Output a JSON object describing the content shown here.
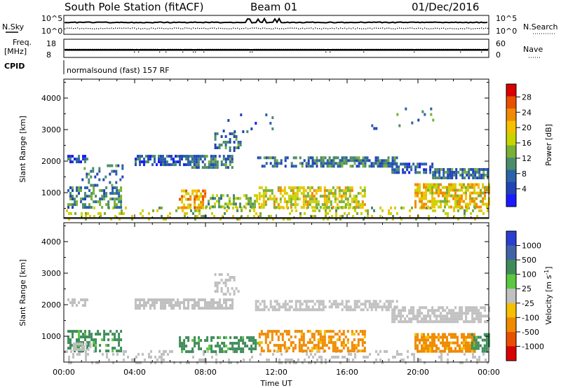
{
  "header": {
    "station": "South Pole Station (fitACF)",
    "beam": "Beam 01",
    "date": "01/Dec/2016"
  },
  "nsky_panel": {
    "left_label": "N.Sky",
    "right_label": "N.Search",
    "left_ticks": [
      "10^5",
      "10^0"
    ],
    "right_ticks": [
      "10^5",
      "10^0"
    ]
  },
  "freq_panel": {
    "left_label_line1": "Freq.",
    "left_label_line2": "[MHz]",
    "right_label": "Nave",
    "left_ticks": [
      "18",
      "8"
    ],
    "right_ticks": [
      "60",
      "0"
    ],
    "freq_value": 12,
    "nave_value": 28
  },
  "cpid": {
    "label": "CPID",
    "text": "normalsound (fast) 157 RF"
  },
  "chart_data": [
    {
      "type": "heatmap",
      "name": "power",
      "ylabel": "Slant Range [km]",
      "xlabel": "",
      "ylim": [
        180,
        4600
      ],
      "yticks": [
        1000,
        2000,
        3000,
        4000
      ],
      "xlim": [
        0,
        24
      ],
      "colorbar": {
        "label": "Power [dB]",
        "ticks": [
          "4",
          "8",
          "12",
          "16",
          "20",
          "24",
          "28"
        ],
        "colors": [
          "#1a1aff",
          "#2243b8",
          "#2a63a8",
          "#4d8c6a",
          "#79b038",
          "#c8d400",
          "#f5c000",
          "#f08a00",
          "#e85000",
          "#d80000"
        ]
      },
      "echo_regions": [
        {
          "t_start": 0.0,
          "t_end": 24.0,
          "range_low": 200,
          "range_high": 560,
          "value": 16,
          "density": 0.22
        },
        {
          "t_start": 0.2,
          "t_end": 3.2,
          "range_low": 560,
          "range_high": 1200,
          "value": 10,
          "density": 0.45
        },
        {
          "t_start": 0.2,
          "t_end": 1.3,
          "range_low": 1950,
          "range_high": 2200,
          "value": 6,
          "density": 0.7
        },
        {
          "t_start": 1.0,
          "t_end": 3.5,
          "range_low": 1200,
          "range_high": 1900,
          "value": 8,
          "density": 0.18
        },
        {
          "t_start": 4.0,
          "t_end": 7.2,
          "range_low": 1850,
          "range_high": 2200,
          "value": 6,
          "density": 0.7
        },
        {
          "t_start": 7.2,
          "t_end": 9.5,
          "range_low": 1800,
          "range_high": 2200,
          "value": 8,
          "density": 0.7
        },
        {
          "t_start": 8.5,
          "t_end": 10.0,
          "range_low": 2300,
          "range_high": 3000,
          "value": 8,
          "density": 0.35
        },
        {
          "t_start": 6.5,
          "t_end": 8.0,
          "range_low": 520,
          "range_high": 1100,
          "value": 20,
          "density": 0.6
        },
        {
          "t_start": 8.0,
          "t_end": 11.0,
          "range_low": 560,
          "range_high": 950,
          "value": 13,
          "density": 0.5
        },
        {
          "t_start": 11.0,
          "t_end": 17.0,
          "range_low": 560,
          "range_high": 1200,
          "value": 17,
          "density": 0.6
        },
        {
          "t_start": 10.8,
          "t_end": 16.0,
          "range_low": 1850,
          "range_high": 2150,
          "value": 8,
          "density": 0.45
        },
        {
          "t_start": 14.0,
          "t_end": 18.8,
          "range_low": 1850,
          "range_high": 2150,
          "value": 9,
          "density": 0.7
        },
        {
          "t_start": 18.5,
          "t_end": 20.8,
          "range_low": 1600,
          "range_high": 1950,
          "value": 7,
          "density": 0.6
        },
        {
          "t_start": 20.8,
          "t_end": 24.0,
          "range_low": 1500,
          "range_high": 1780,
          "value": 8,
          "density": 0.75
        },
        {
          "t_start": 19.8,
          "t_end": 24.0,
          "range_low": 560,
          "range_high": 1300,
          "value": 19,
          "density": 0.65
        },
        {
          "t_start": 9.0,
          "t_end": 12.0,
          "range_low": 2900,
          "range_high": 3600,
          "value": 6,
          "density": 0.05
        },
        {
          "t_start": 17.0,
          "t_end": 22.0,
          "range_low": 3000,
          "range_high": 3700,
          "value": 8,
          "density": 0.03
        }
      ]
    },
    {
      "type": "heatmap",
      "name": "velocity",
      "ylabel": "Slant Range [km]",
      "xlabel": "Time UT",
      "ylim": [
        180,
        4600
      ],
      "yticks": [
        1000,
        2000,
        3000,
        4000
      ],
      "xlim": [
        0,
        24
      ],
      "xtick_labels": [
        "00:00",
        "04:00",
        "08:00",
        "12:00",
        "16:00",
        "20:00",
        "00:00"
      ],
      "colorbar": {
        "label": "Velocity [m s^-1]",
        "ticks": [
          "1000",
          "500",
          "100",
          "25",
          "-25",
          "-100",
          "-500",
          "-1000"
        ],
        "colors": [
          "#2a3fcf",
          "#3f64a6",
          "#3f8c5a",
          "#5ac840",
          "#c0c0c0",
          "#f5c000",
          "#f08a00",
          "#e85000",
          "#d80000"
        ]
      },
      "echo_regions": [
        {
          "t_start": 0.0,
          "t_end": 24.0,
          "range_low": 200,
          "range_high": 560,
          "value": 0,
          "density": 0.2
        },
        {
          "t_start": 0.2,
          "t_end": 3.2,
          "range_low": 560,
          "range_high": 1200,
          "value": 200,
          "density": 0.45
        },
        {
          "t_start": 0.5,
          "t_end": 1.5,
          "range_low": 620,
          "range_high": 800,
          "value": 0,
          "density": 0.6
        },
        {
          "t_start": 0.2,
          "t_end": 1.3,
          "range_low": 1950,
          "range_high": 2200,
          "value": 0,
          "density": 0.6
        },
        {
          "t_start": 4.0,
          "t_end": 9.5,
          "range_low": 1850,
          "range_high": 2200,
          "value": 0,
          "density": 0.7
        },
        {
          "t_start": 8.5,
          "t_end": 10.0,
          "range_low": 2300,
          "range_high": 3000,
          "value": 0,
          "density": 0.35
        },
        {
          "t_start": 6.5,
          "t_end": 11.0,
          "range_low": 520,
          "range_high": 1000,
          "value": 200,
          "density": 0.55
        },
        {
          "t_start": 11.0,
          "t_end": 17.0,
          "range_low": 560,
          "range_high": 1200,
          "value": -200,
          "density": 0.55
        },
        {
          "t_start": 10.8,
          "t_end": 18.8,
          "range_low": 1850,
          "range_high": 2150,
          "value": 0,
          "density": 0.6
        },
        {
          "t_start": 18.5,
          "t_end": 24.0,
          "range_low": 1500,
          "range_high": 1950,
          "value": 0,
          "density": 0.7
        },
        {
          "t_start": 19.8,
          "t_end": 23.2,
          "range_low": 560,
          "range_high": 1100,
          "value": -200,
          "density": 0.75
        },
        {
          "t_start": 23.0,
          "t_end": 24.0,
          "range_low": 560,
          "range_high": 1100,
          "value": 200,
          "density": 0.6
        }
      ]
    }
  ]
}
